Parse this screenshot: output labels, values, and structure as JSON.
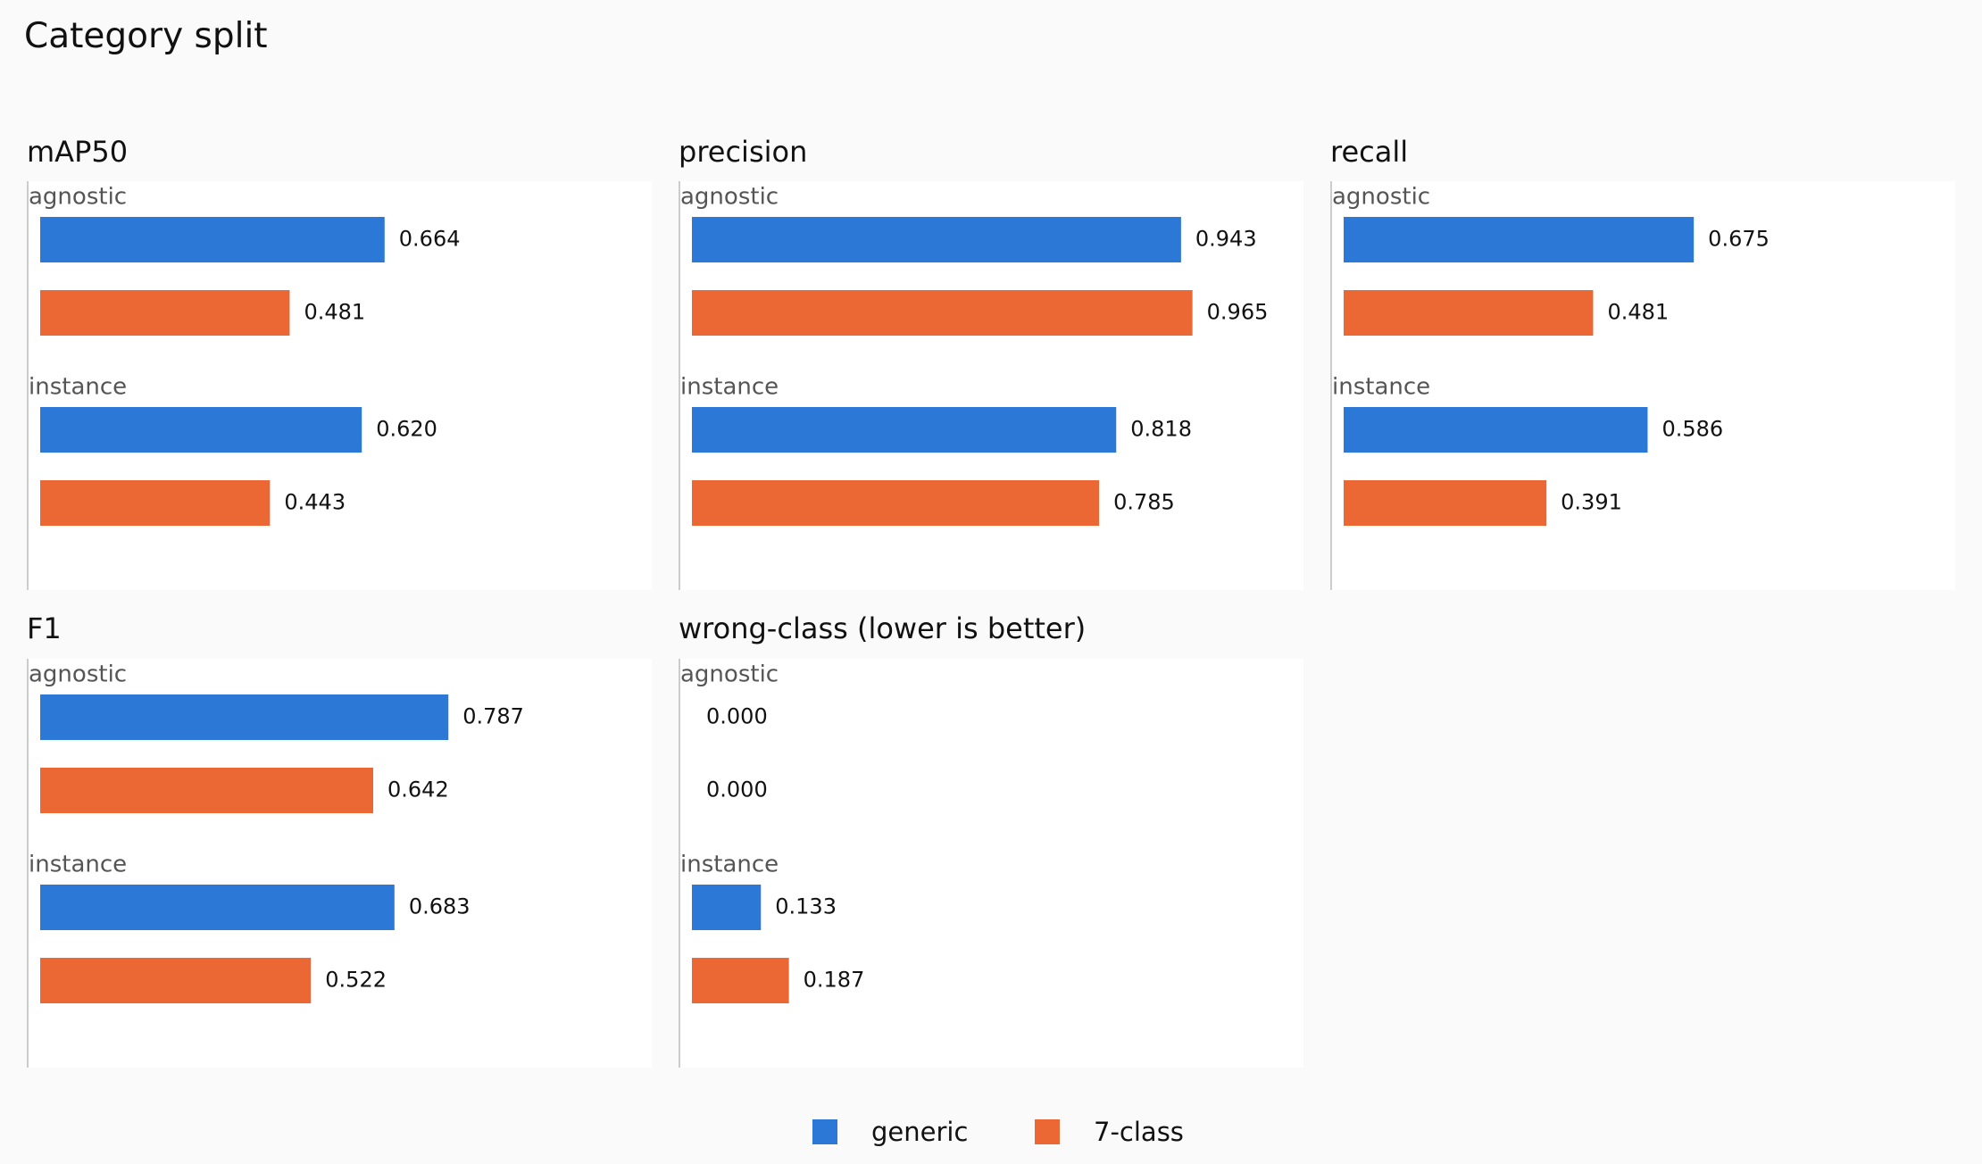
{
  "title": "Category split",
  "colors": {
    "generic": "#2b78d6",
    "seven_class": "#eb6835",
    "group_label": "#555555",
    "value_label": "#111111"
  },
  "legend": [
    {
      "label": "generic",
      "color": "#2b78d6"
    },
    {
      "label": "7-class",
      "color": "#eb6835"
    }
  ],
  "chart_data": [
    {
      "type": "bar",
      "orientation": "horizontal",
      "title": "mAP50",
      "groups": [
        "agnostic",
        "instance"
      ],
      "series": [
        {
          "name": "generic",
          "values": [
            0.664,
            0.62
          ]
        },
        {
          "name": "7-class",
          "values": [
            0.481,
            0.443
          ]
        }
      ]
    },
    {
      "type": "bar",
      "orientation": "horizontal",
      "title": "precision",
      "groups": [
        "agnostic",
        "instance"
      ],
      "series": [
        {
          "name": "generic",
          "values": [
            0.943,
            0.818
          ]
        },
        {
          "name": "7-class",
          "values": [
            0.965,
            0.785
          ]
        }
      ]
    },
    {
      "type": "bar",
      "orientation": "horizontal",
      "title": "recall",
      "groups": [
        "agnostic",
        "instance"
      ],
      "series": [
        {
          "name": "generic",
          "values": [
            0.675,
            0.586
          ]
        },
        {
          "name": "7-class",
          "values": [
            0.481,
            0.391
          ]
        }
      ]
    },
    {
      "type": "bar",
      "orientation": "horizontal",
      "title": "F1",
      "groups": [
        "agnostic",
        "instance"
      ],
      "series": [
        {
          "name": "generic",
          "values": [
            0.787,
            0.683
          ]
        },
        {
          "name": "7-class",
          "values": [
            0.642,
            0.522
          ]
        }
      ]
    },
    {
      "type": "bar",
      "orientation": "horizontal",
      "title": "wrong-class  (lower is better)",
      "groups": [
        "agnostic",
        "instance"
      ],
      "series": [
        {
          "name": "generic",
          "values": [
            0.0,
            0.133
          ]
        },
        {
          "name": "7-class",
          "values": [
            0.0,
            0.187
          ]
        }
      ]
    }
  ]
}
